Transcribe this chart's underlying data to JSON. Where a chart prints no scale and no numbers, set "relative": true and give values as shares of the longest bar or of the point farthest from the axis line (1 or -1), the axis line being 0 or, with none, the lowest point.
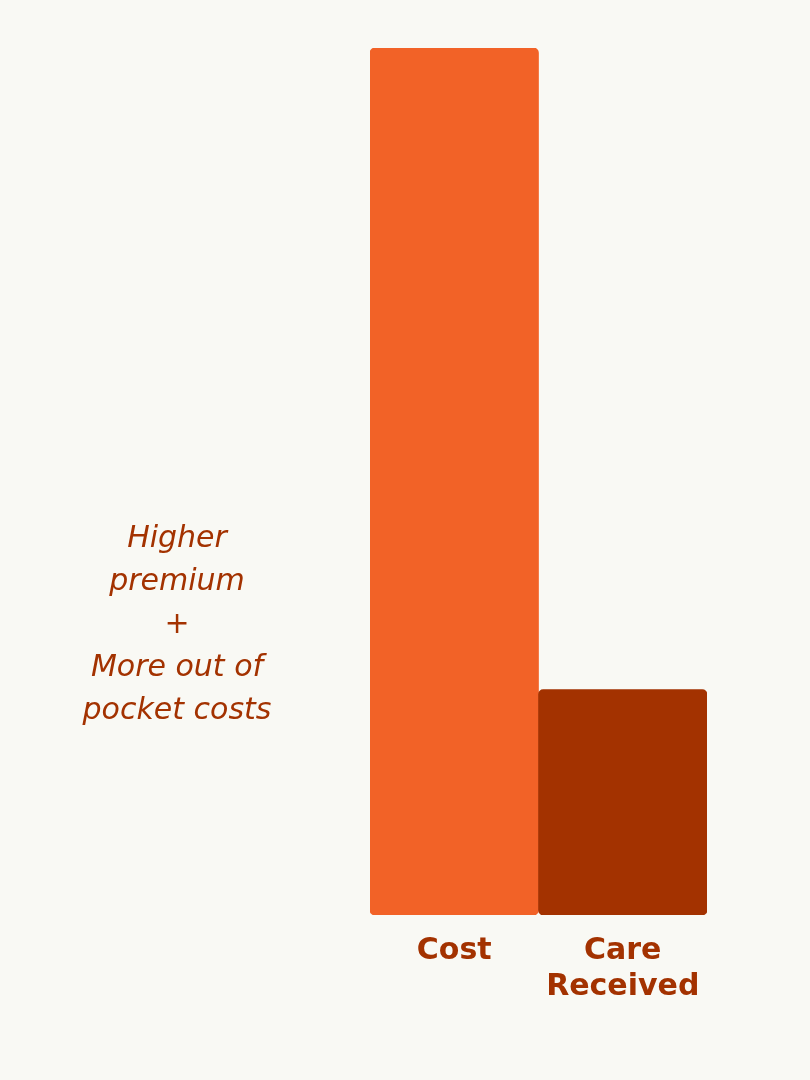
{
  "chart_data": {
    "type": "bar",
    "relative": true,
    "categories": [
      "Cost",
      "Care Received"
    ],
    "values": [
      1,
      0.26
    ],
    "colors": [
      "#f26227",
      "#a33200"
    ],
    "annotations": [
      "Higher\npremium\n+\nMore out of\npocket costs"
    ],
    "grid": false,
    "legend": false
  }
}
